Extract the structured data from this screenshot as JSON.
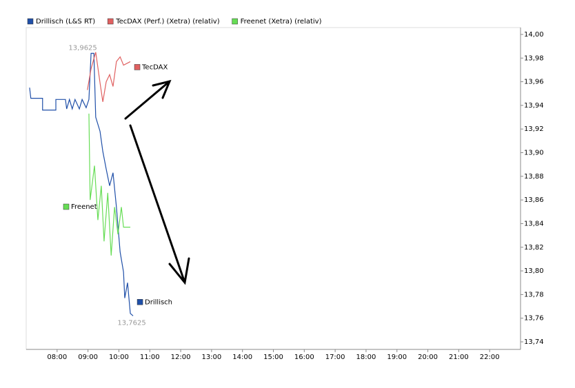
{
  "chart_data": {
    "type": "line",
    "legend": "top-left",
    "grid": false,
    "xlim": [
      7,
      23
    ],
    "xticks": [
      {
        "value": 8,
        "label": "08:00"
      },
      {
        "value": 9,
        "label": "09:00"
      },
      {
        "value": 10,
        "label": "10:00"
      },
      {
        "value": 11,
        "label": "11:00"
      },
      {
        "value": 12,
        "label": "12:00"
      },
      {
        "value": 13,
        "label": "13:00"
      },
      {
        "value": 14,
        "label": "14:00"
      },
      {
        "value": 15,
        "label": "15:00"
      },
      {
        "value": 16,
        "label": "16:00"
      },
      {
        "value": 17,
        "label": "17:00"
      },
      {
        "value": 18,
        "label": "18:00"
      },
      {
        "value": 19,
        "label": "19:00"
      },
      {
        "value": 20,
        "label": "20:00"
      },
      {
        "value": 21,
        "label": "21:00"
      },
      {
        "value": 22,
        "label": "22:00"
      }
    ],
    "ylim": [
      13.7336,
      14.0058
    ],
    "yticks": [
      {
        "value": 13.74,
        "label": "13,74"
      },
      {
        "value": 13.76,
        "label": "13,76"
      },
      {
        "value": 13.78,
        "label": "13,78"
      },
      {
        "value": 13.8,
        "label": "13,80"
      },
      {
        "value": 13.82,
        "label": "13,82"
      },
      {
        "value": 13.84,
        "label": "13,84"
      },
      {
        "value": 13.86,
        "label": "13,86"
      },
      {
        "value": 13.88,
        "label": "13,88"
      },
      {
        "value": 13.9,
        "label": "13,90"
      },
      {
        "value": 13.92,
        "label": "13,92"
      },
      {
        "value": 13.94,
        "label": "13,94"
      },
      {
        "value": 13.96,
        "label": "13,96"
      },
      {
        "value": 13.98,
        "label": "13,98"
      },
      {
        "value": 14,
        "label": "14,00"
      }
    ],
    "annotations": [
      "13,9625",
      "13,7625"
    ],
    "series": [
      {
        "name": "Drillisch (L&S RT)",
        "label": "Drillisch",
        "color": "#1f4fa8",
        "x": [
          7.11,
          7.15,
          7.53,
          7.53,
          7.96,
          7.96,
          8.27,
          8.31,
          8.4,
          8.49,
          8.58,
          8.72,
          8.81,
          8.94,
          9.03,
          9.1,
          9.19,
          9.25,
          9.39,
          9.48,
          9.59,
          9.7,
          9.81,
          9.92,
          10.04,
          10.15,
          10.19,
          10.28,
          10.37,
          10.46
        ],
        "values": [
          13.955,
          13.946,
          13.946,
          13.936,
          13.936,
          13.945,
          13.945,
          13.937,
          13.945,
          13.937,
          13.945,
          13.937,
          13.945,
          13.938,
          13.945,
          13.984,
          13.984,
          13.93,
          13.918,
          13.901,
          13.886,
          13.872,
          13.883,
          13.854,
          13.816,
          13.799,
          13.777,
          13.79,
          13.764,
          13.762
        ]
      },
      {
        "name": "TecDAX (Perf.) (Xetra) (relativ)",
        "label": "TecDAX",
        "color": "#e06060",
        "x": [
          8.98,
          9.1,
          9.25,
          9.39,
          9.48,
          9.59,
          9.7,
          9.81,
          9.92,
          10.04,
          10.15,
          10.37
        ],
        "values": [
          13.953,
          13.971,
          13.985,
          13.959,
          13.943,
          13.96,
          13.966,
          13.956,
          13.977,
          13.981,
          13.974,
          13.977
        ]
      },
      {
        "name": "Freenet (Xetra) (relativ)",
        "label": "Freenet",
        "color": "#66dd55",
        "x": [
          9.03,
          9.07,
          9.21,
          9.32,
          9.43,
          9.52,
          9.64,
          9.75,
          9.86,
          9.97,
          10.08,
          10.15,
          10.37
        ],
        "values": [
          13.933,
          13.86,
          13.889,
          13.843,
          13.872,
          13.825,
          13.866,
          13.813,
          13.854,
          13.831,
          13.854,
          13.837,
          13.837
        ]
      }
    ]
  }
}
